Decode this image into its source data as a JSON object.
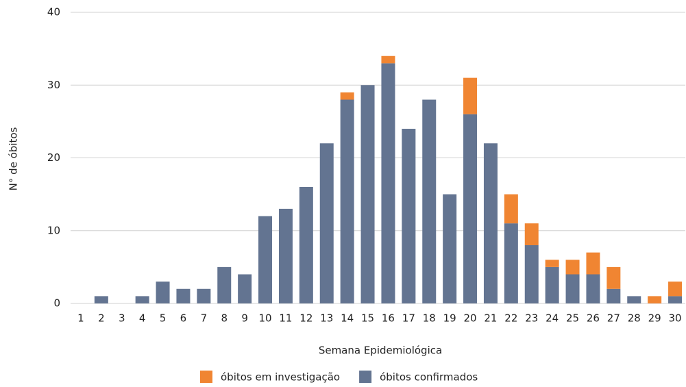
{
  "chart_data": {
    "type": "stacked_bar",
    "x_label": "Semana Epidemiológica",
    "y_label": "N° de óbitos",
    "categories": [
      "1",
      "2",
      "3",
      "4",
      "5",
      "6",
      "7",
      "8",
      "9",
      "10",
      "11",
      "12",
      "13",
      "14",
      "15",
      "16",
      "17",
      "18",
      "19",
      "20",
      "21",
      "22",
      "23",
      "24",
      "25",
      "26",
      "27",
      "28",
      "29",
      "30"
    ],
    "series": [
      {
        "name": "óbitos confirmados",
        "color": "#637491",
        "values": [
          0,
          1,
          0,
          1,
          3,
          2,
          2,
          5,
          4,
          12,
          13,
          16,
          22,
          28,
          30,
          33,
          24,
          28,
          15,
          26,
          22,
          11,
          8,
          5,
          4,
          4,
          2,
          1,
          0,
          1
        ]
      },
      {
        "name": "óbitos em investigação",
        "color": "#f08532",
        "values": [
          0,
          0,
          0,
          0,
          0,
          0,
          0,
          0,
          0,
          0,
          0,
          0,
          0,
          1,
          0,
          1,
          0,
          0,
          0,
          5,
          0,
          4,
          3,
          1,
          2,
          3,
          3,
          0,
          1,
          2
        ]
      }
    ],
    "ylim": [
      0,
      40
    ],
    "yticks": [
      0,
      10,
      20,
      30,
      40
    ],
    "grid": true
  }
}
